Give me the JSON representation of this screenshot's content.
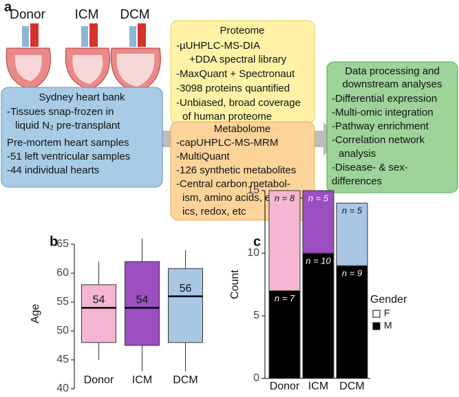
{
  "panel_a": {
    "label": "a",
    "hearts": [
      "Donor",
      "ICM",
      "DCM"
    ],
    "sydney": {
      "lines": [
        "Sydney heart bank",
        "-Tissues snap-frozen in",
        "liquid N₂ pre-transplant",
        "Pre-mortem heart samples",
        "-51 left ventricular samples",
        "-44 individual hearts"
      ]
    },
    "proteome": {
      "title": "Proteome",
      "lines": [
        "-µUHPLC-MS-DIA",
        "+DDA spectral library",
        "-MaxQuant + Spectronaut",
        "-3098 proteins quantified",
        "-Unbiased, broad coverage",
        "of human proteome"
      ]
    },
    "metabolome": {
      "title": "Metabolome",
      "lines": [
        "-capUHPLC-MS-MRM",
        "-MultiQuant",
        "-126 synthetic metabolites",
        "-Central carbon metabol-",
        "ism, amino acids, energet-",
        "ics, redox, etc"
      ]
    },
    "analysis": {
      "title": [
        "Data processing and",
        "downstream analyses"
      ],
      "lines": [
        "-Differential expression",
        "-Multi-omic integration",
        "-Pathway enrichment",
        "-Correlation network",
        "analysis",
        "-Disease- & sex-",
        "differences"
      ]
    }
  },
  "chart_data": [
    {
      "type": "box",
      "label": "b",
      "ylabel": "Age",
      "categories": [
        "Donor",
        "ICM",
        "DCM"
      ],
      "min": [
        45,
        43,
        43
      ],
      "q1": [
        48,
        47.5,
        48
      ],
      "median": [
        54,
        54,
        56
      ],
      "q3": [
        58,
        62,
        60.8
      ],
      "max": [
        62,
        66,
        64
      ],
      "colors": [
        "#f4b6d2",
        "#9b4fc0",
        "#a9c6e5"
      ],
      "ylim": [
        40,
        66
      ],
      "yticks": [
        40,
        45,
        50,
        55,
        60,
        65
      ]
    },
    {
      "type": "stacked_bar",
      "label": "c",
      "ylabel": "Count",
      "categories": [
        "Donor",
        "ICM",
        "DCM"
      ],
      "series": [
        {
          "name": "M",
          "color": "#000000",
          "values": [
            7,
            10,
            9
          ],
          "value_labels": [
            "n = 7",
            "n = 10",
            "n = 9"
          ]
        },
        {
          "name": "F",
          "color": "#ffffff",
          "colors": [
            "#f4b6d2",
            "#9b4fc0",
            "#a9c6e5"
          ],
          "values": [
            8,
            5,
            5
          ],
          "value_labels": [
            "n = 8",
            "n = 5",
            "n = 5"
          ]
        }
      ],
      "legend_title": "Gender",
      "ylim": [
        0,
        15
      ],
      "yticks": [
        0,
        5,
        10,
        15
      ]
    }
  ]
}
